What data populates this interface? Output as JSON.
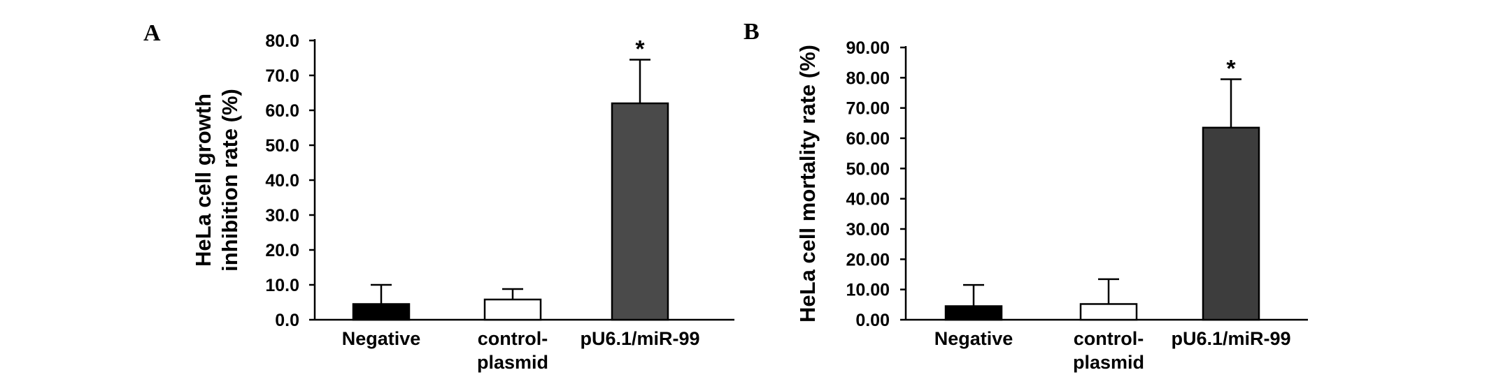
{
  "figure": {
    "panels": [
      {
        "letter": "A"
      },
      {
        "letter": "B"
      }
    ]
  },
  "chart_data": [
    {
      "type": "bar",
      "panel": "A",
      "ylabel": "HeLa cell growth inhibition rate (%)",
      "ylabel_lines": [
        "HeLa cell growth",
        "inhibition rate (%)"
      ],
      "ylim": [
        0,
        80
      ],
      "yticks": [
        "0.0",
        "10.0",
        "20.0",
        "30.0",
        "40.0",
        "50.0",
        "60.0",
        "70.0",
        "80.0"
      ],
      "categories": [
        "Negative",
        "control-plasmid",
        "pU6.1/miR-99"
      ],
      "category_lines": [
        [
          "Negative"
        ],
        [
          "control-",
          "plasmid"
        ],
        [
          "pU6.1/miR-99"
        ]
      ],
      "values": [
        4.5,
        5.8,
        62.0
      ],
      "errors": [
        5.5,
        3.0,
        12.5
      ],
      "bar_colors": [
        "#000000",
        "#ffffff",
        "#4a4a4a"
      ],
      "significance": [
        "",
        "",
        "*"
      ]
    },
    {
      "type": "bar",
      "panel": "B",
      "ylabel": "HeLa cell mortality rate (%)",
      "ylabel_lines": [
        "HeLa cell mortality rate (%)"
      ],
      "ylim": [
        0,
        90
      ],
      "yticks": [
        "0.00",
        "10.00",
        "20.00",
        "30.00",
        "40.00",
        "50.00",
        "60.00",
        "70.00",
        "80.00",
        "90.00"
      ],
      "categories": [
        "Negative",
        "control-plasmid",
        "pU6.1/miR-99"
      ],
      "category_lines": [
        [
          "Negative"
        ],
        [
          "control-",
          "plasmid"
        ],
        [
          "pU6.1/miR-99"
        ]
      ],
      "values": [
        4.5,
        5.2,
        63.5
      ],
      "errors": [
        7.0,
        8.2,
        16.0
      ],
      "bar_colors": [
        "#000000",
        "#ffffff",
        "#3d3d3d"
      ],
      "significance": [
        "",
        "",
        "*"
      ]
    }
  ]
}
